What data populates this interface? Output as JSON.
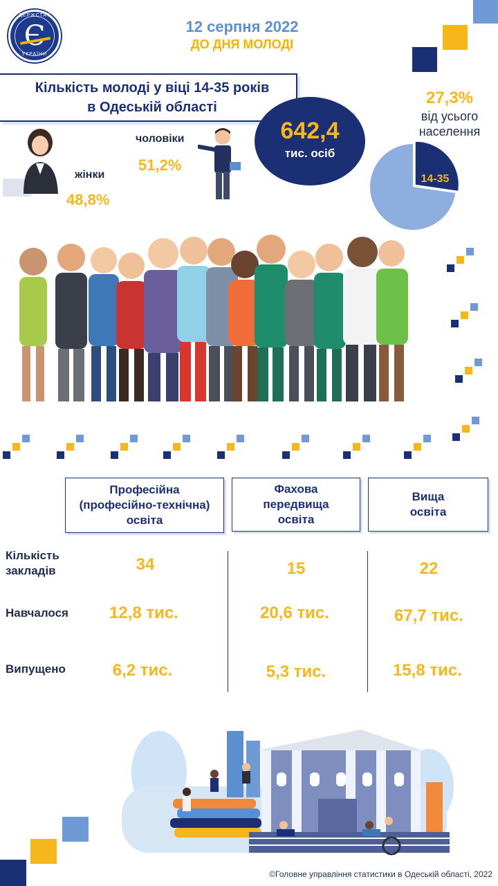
{
  "logo": {
    "top_text": "ДЕРЖСТАТ",
    "bottom_text": "УКРАЇНИ",
    "symbol": "Є"
  },
  "header": {
    "date": "12 серпня 2022",
    "subtitle": "ДО ДНЯ МОЛОДІ"
  },
  "title": {
    "line1": "Кількість молоді у віці 14-35 років",
    "line2": "в Одеській області"
  },
  "total": {
    "value": "642,4",
    "unit": "тис. осіб"
  },
  "share": {
    "percent": "27,3%",
    "line1": "від усього",
    "line2": "населення",
    "slice_label": "14-35",
    "fraction": 0.273
  },
  "gender": {
    "men_label": "чоловіки",
    "men_value": "51,2%",
    "women_label": "жінки",
    "women_value": "48,8%"
  },
  "table": {
    "columns": [
      {
        "lines": [
          "Професійна",
          "(професійно-технічна)",
          "освіта"
        ]
      },
      {
        "lines": [
          "Фахова",
          "передвища",
          "освіта"
        ]
      },
      {
        "lines": [
          "Вища",
          "освіта"
        ]
      }
    ],
    "rows": [
      {
        "label_lines": [
          "Кількість",
          "закладів"
        ],
        "values": [
          "34",
          "15",
          "22"
        ]
      },
      {
        "label_lines": [
          "Навчалося"
        ],
        "values": [
          "12,8 тис.",
          "20,6 тис.",
          "67,7 тис."
        ]
      },
      {
        "label_lines": [
          "Випущено"
        ],
        "values": [
          "6,2 тис.",
          "5,3 тис.",
          "15,8 тис."
        ]
      }
    ]
  },
  "footer": "©Головне управління статистики в Одеській області, 2022",
  "colors": {
    "navy": "#1b2f74",
    "gold": "#f6b71a",
    "light_blue": "#6f9ad6",
    "pie_light": "#8eaee0"
  }
}
